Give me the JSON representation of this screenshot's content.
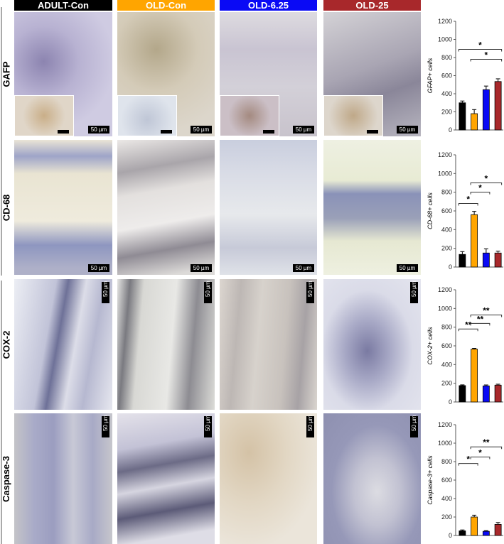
{
  "groups": [
    {
      "label": "ADULT-Con",
      "color": "#000000"
    },
    {
      "label": "OLD-Con",
      "color": "#FFA500"
    },
    {
      "label": "OLD-6.25",
      "color": "#0A0AF5"
    },
    {
      "label": "OLD-25",
      "color": "#A8282B"
    }
  ],
  "rows": [
    {
      "label": "GAFP",
      "scale_bar": "50 µm",
      "inset_scale": "50 µm"
    },
    {
      "label": "CD-68",
      "scale_bar": "50 µm"
    },
    {
      "label": "COX-2",
      "scale_bar": "50 µm"
    },
    {
      "label": "Caspase-3",
      "scale_bar": "50 µm"
    }
  ],
  "chart_data": [
    {
      "type": "bar",
      "ylabel": "GFAP+ cells",
      "categories": [
        "ADULT-Con",
        "OLD-Con",
        "OLD-6.25",
        "OLD-25"
      ],
      "values": [
        300,
        180,
        445,
        535
      ],
      "errors": [
        20,
        45,
        40,
        30
      ],
      "colors": [
        "#000000",
        "#FFA500",
        "#0A0AF5",
        "#A8282B"
      ],
      "yticks": [
        0,
        200,
        400,
        600,
        800,
        1000,
        1200
      ],
      "ylim": [
        0,
        1200
      ],
      "significance": [
        {
          "from": 0,
          "to": 3,
          "label": "*",
          "y": 890
        },
        {
          "from": 1,
          "to": 3,
          "label": "*",
          "y": 780
        }
      ]
    },
    {
      "type": "bar",
      "ylabel": "CD-68+ cells",
      "categories": [
        "ADULT-Con",
        "OLD-Con",
        "OLD-6.25",
        "OLD-25"
      ],
      "values": [
        135,
        560,
        150,
        150
      ],
      "errors": [
        30,
        35,
        45,
        20
      ],
      "colors": [
        "#000000",
        "#FFA500",
        "#0A0AF5",
        "#A8282B"
      ],
      "yticks": [
        0,
        200,
        400,
        600,
        800,
        1000,
        1200
      ],
      "ylim": [
        0,
        1200
      ],
      "significance": [
        {
          "from": 0,
          "to": 1,
          "label": "*",
          "y": 680
        },
        {
          "from": 1,
          "to": 2,
          "label": "*",
          "y": 800
        },
        {
          "from": 1,
          "to": 3,
          "label": "*",
          "y": 900
        }
      ]
    },
    {
      "type": "bar",
      "ylabel": "COX-2+ cells",
      "categories": [
        "ADULT-Con",
        "OLD-Con",
        "OLD-6.25",
        "OLD-25"
      ],
      "values": [
        175,
        565,
        172,
        180
      ],
      "errors": [
        8,
        8,
        10,
        10
      ],
      "colors": [
        "#000000",
        "#FFA500",
        "#0A0AF5",
        "#A8282B"
      ],
      "yticks": [
        0,
        200,
        400,
        600,
        800,
        1000,
        1200
      ],
      "ylim": [
        0,
        1200
      ],
      "significance": [
        {
          "from": 0,
          "to": 1,
          "label": "**",
          "y": 780
        },
        {
          "from": 1,
          "to": 2,
          "label": "**",
          "y": 840
        },
        {
          "from": 1,
          "to": 3,
          "label": "**",
          "y": 930
        }
      ]
    },
    {
      "type": "bar",
      "ylabel": "Caspase-3+ cells",
      "categories": [
        "ADULT-Con",
        "OLD-Con",
        "OLD-6.25",
        "OLD-25"
      ],
      "values": [
        50,
        200,
        45,
        120
      ],
      "errors": [
        10,
        20,
        8,
        20
      ],
      "colors": [
        "#000000",
        "#FFA500",
        "#0A0AF5",
        "#A8282B"
      ],
      "yticks": [
        0,
        200,
        400,
        600,
        800,
        1000,
        1200
      ],
      "ylim": [
        0,
        1200
      ],
      "significance": [
        {
          "from": 0,
          "to": 1,
          "label": "*",
          "y": 780
        },
        {
          "from": 1,
          "to": 2,
          "label": "*",
          "y": 850
        },
        {
          "from": 1,
          "to": 3,
          "label": "**",
          "y": 960
        }
      ]
    }
  ]
}
